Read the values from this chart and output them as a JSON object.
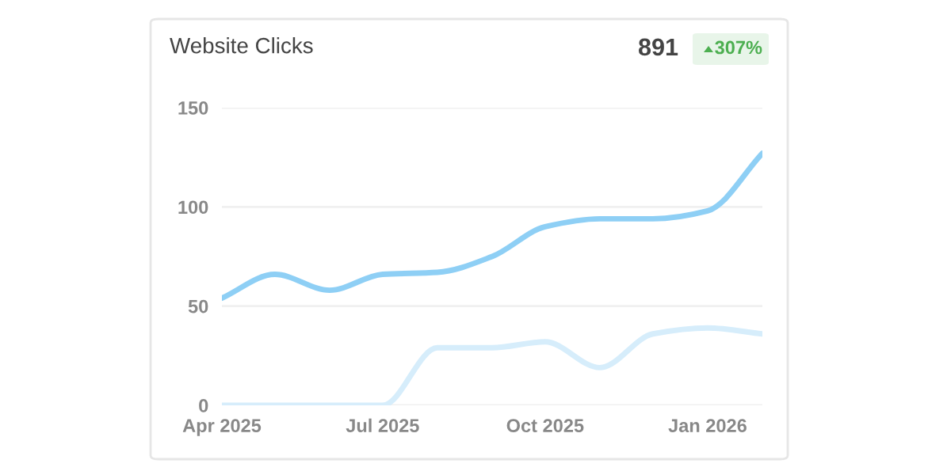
{
  "chart_data": {
    "type": "line",
    "title": "Website Clicks",
    "annotations": [
      "891",
      "307%"
    ],
    "x": [
      "2025-04",
      "2025-05",
      "2025-06",
      "2025-07",
      "2025-08",
      "2025-09",
      "2025-10",
      "2025-11",
      "2025-12",
      "2026-01",
      "2026-02"
    ],
    "series": [
      {
        "color": "#8ecff5",
        "values": [
          54,
          66,
          58,
          66,
          67,
          75,
          90,
          94,
          94,
          98,
          127
        ]
      },
      {
        "color": "#d6edfb",
        "values": [
          0,
          0,
          0,
          0,
          29,
          29,
          32,
          19,
          36,
          39,
          36
        ]
      }
    ],
    "xlim": [
      "2025-04",
      "2026-02"
    ],
    "ylim": [
      0,
      150
    ],
    "yticks": [
      0,
      50,
      100,
      150
    ],
    "xticks": [
      {
        "value": "2025-04",
        "label": "Apr 2025"
      },
      {
        "value": "2025-07",
        "label": "Jul 2025"
      },
      {
        "value": "2025-10",
        "label": "Oct 2025"
      },
      {
        "value": "2026-01",
        "label": "Jan 2026"
      }
    ],
    "grid": "y",
    "legend": false
  }
}
